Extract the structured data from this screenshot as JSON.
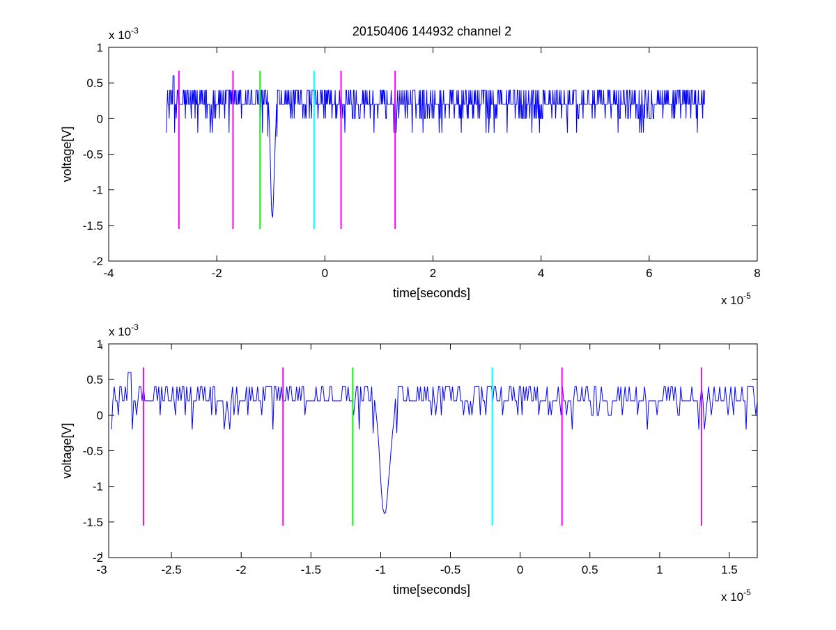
{
  "chart_data": [
    {
      "type": "line",
      "title": "20150406 144932 channel 2",
      "xlabel": "time[seconds]",
      "ylabel": "voltage[V]",
      "x_multiplier": "x 10",
      "x_exponent": "-5",
      "y_multiplier": "x 10",
      "y_exponent": "-3",
      "xlim": [
        -4e-05,
        8e-05
      ],
      "ylim": [
        -0.002,
        0.001
      ],
      "xticks": [
        -4e-05,
        -2e-05,
        0,
        2e-05,
        4e-05,
        6e-05,
        8e-05
      ],
      "xtick_labels": [
        "-4",
        "-2",
        "0",
        "2",
        "4",
        "6",
        "8"
      ],
      "yticks": [
        -0.002,
        -0.0015,
        -0.001,
        -0.0005,
        0,
        0.0005,
        0.001
      ],
      "ytick_labels": [
        "-2",
        "-1.5",
        "-1",
        "-0.5",
        "0",
        "0.5",
        "1"
      ],
      "series": [
        {
          "color": "#0000ff",
          "x_start": -2.93e-05,
          "x_end": 7.03e-05,
          "n_points": 1000,
          "baseline": 0.0002,
          "quantum": 0.0002,
          "features": [
            {
              "x": -9.7e-06,
              "y": -0.0014
            },
            {
              "x": -2.8e-05,
              "y": 0.0006
            }
          ]
        }
      ],
      "markers": [
        {
          "x": -2.7e-05,
          "color": "#ff00ff"
        },
        {
          "x": -1.7e-05,
          "color": "#ff00ff"
        },
        {
          "x": -1.2e-05,
          "color": "#00ff00"
        },
        {
          "x": -2e-06,
          "color": "#00ffff"
        },
        {
          "x": 3e-06,
          "color": "#ff00ff"
        },
        {
          "x": 1.3e-05,
          "color": "#ff00ff"
        }
      ],
      "marker_ylim": [
        -0.00155,
        0.00067
      ],
      "grid": false
    },
    {
      "type": "line",
      "title": "",
      "xlabel": "time[seconds]",
      "ylabel": "voltage[V]",
      "x_multiplier": "x 10",
      "x_exponent": "-5",
      "y_multiplier": "x 10",
      "y_exponent": "-3",
      "xlim": [
        -2.95e-05,
        1.7e-05
      ],
      "ylim": [
        -0.002,
        0.001
      ],
      "xticks": [
        -3e-05,
        -2.5e-05,
        -2e-05,
        -1.5e-05,
        -1e-05,
        -5e-06,
        0,
        5e-06,
        1e-05,
        1.5e-05
      ],
      "xtick_labels": [
        "-3",
        "-2.5",
        "-2",
        "-1.5",
        "-1",
        "-0.5",
        "0",
        "0.5",
        "1",
        "1.5"
      ],
      "yticks": [
        -0.002,
        -0.0015,
        -0.001,
        -0.0005,
        0,
        0.0005,
        0.001
      ],
      "ytick_labels": [
        "-2",
        "-1.5",
        "-1",
        "-0.5",
        "0",
        "0.5",
        "1"
      ],
      "series": [
        {
          "color": "#0000ff",
          "x_start": -2.93e-05,
          "x_end": 1.7e-05,
          "n_points": 465,
          "baseline": 0.0002,
          "quantum": 0.0002,
          "features": [
            {
              "x": -9.7e-06,
              "y": -0.0014
            },
            {
              "x": -2.8e-05,
              "y": 0.0006
            }
          ]
        }
      ],
      "markers": [
        {
          "x": -2.7e-05,
          "color": "#ff00ff"
        },
        {
          "x": -1.7e-05,
          "color": "#ff00ff"
        },
        {
          "x": -1.2e-05,
          "color": "#00ff00"
        },
        {
          "x": -2e-06,
          "color": "#00ffff"
        },
        {
          "x": 3e-06,
          "color": "#ff00ff"
        },
        {
          "x": 1.3e-05,
          "color": "#ff00ff"
        }
      ],
      "marker_ylim": [
        -0.00155,
        0.00067
      ],
      "grid": false
    }
  ]
}
